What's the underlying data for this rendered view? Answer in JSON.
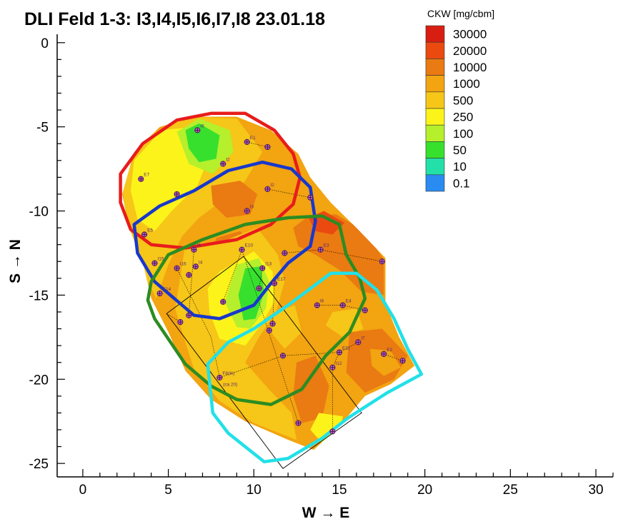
{
  "chart_data": {
    "type": "heatmap",
    "title": "DLI Feld 1-3: I3,I4,I5,I6,I7,I8 23.01.18",
    "xlabel": "W → E",
    "ylabel": "S → N",
    "xlim": [
      -1.5,
      31
    ],
    "ylim": [
      -25.8,
      0.5
    ],
    "xticks": [
      0,
      5,
      10,
      15,
      20,
      25,
      30
    ],
    "yticks": [
      0,
      -5,
      -10,
      -15,
      -20,
      -25
    ],
    "legend": {
      "title": "CKW [mg/cbm]",
      "placement": "top-right",
      "levels": [
        {
          "label": "30000",
          "color": "#d81e12"
        },
        {
          "label": "20000",
          "color": "#ea4a10"
        },
        {
          "label": "10000",
          "color": "#ea7a12"
        },
        {
          "label": "1000",
          "color": "#f2a411"
        },
        {
          "label": "500",
          "color": "#f6c618"
        },
        {
          "label": "250",
          "color": "#fcf31a"
        },
        {
          "label": "100",
          "color": "#b6ef2c"
        },
        {
          "label": "50",
          "color": "#38e02e"
        },
        {
          "label": "10",
          "color": "#22e0a8"
        },
        {
          "label": "0.1",
          "color": "#2a8cf0"
        }
      ]
    },
    "zones": [
      {
        "color": "#e81c1c",
        "points": [
          [
            2.2,
            -7.8
          ],
          [
            3.5,
            -6
          ],
          [
            5.5,
            -4.6
          ],
          [
            7.5,
            -4.2
          ],
          [
            9.5,
            -4.2
          ],
          [
            11.2,
            -5.2
          ],
          [
            12.3,
            -6.6
          ],
          [
            12.7,
            -8
          ],
          [
            12.3,
            -9.6
          ],
          [
            11,
            -10.8
          ],
          [
            9,
            -11.7
          ],
          [
            6,
            -12.2
          ],
          [
            4,
            -12
          ],
          [
            2.8,
            -11.1
          ],
          [
            2.2,
            -9.5
          ]
        ]
      },
      {
        "color": "#1838cc",
        "points": [
          [
            3,
            -10.8
          ],
          [
            4.5,
            -9.7
          ],
          [
            6.5,
            -8.8
          ],
          [
            8.5,
            -7.6
          ],
          [
            10.5,
            -7.1
          ],
          [
            12.2,
            -7.5
          ],
          [
            13.3,
            -8.6
          ],
          [
            13.6,
            -10.6
          ],
          [
            13.3,
            -12.1
          ],
          [
            12,
            -13.1
          ],
          [
            11,
            -14.3
          ],
          [
            10,
            -15.6
          ],
          [
            8,
            -16.4
          ],
          [
            6.5,
            -16.2
          ],
          [
            4.2,
            -14.2
          ],
          [
            3.2,
            -12.5
          ]
        ]
      },
      {
        "color": "#2c8c22",
        "points": [
          [
            4,
            -14.2
          ],
          [
            5,
            -12.6
          ],
          [
            7,
            -11.7
          ],
          [
            9.5,
            -10.8
          ],
          [
            12,
            -10.4
          ],
          [
            14,
            -10.3
          ],
          [
            15,
            -10.8
          ],
          [
            15.4,
            -12.6
          ],
          [
            16.2,
            -14
          ],
          [
            16.5,
            -15.2
          ],
          [
            15.6,
            -17.2
          ],
          [
            14.2,
            -18.6
          ],
          [
            12.8,
            -20.6
          ],
          [
            11,
            -21.5
          ],
          [
            9,
            -21.2
          ],
          [
            7.5,
            -20.4
          ],
          [
            6,
            -19.1
          ],
          [
            4.2,
            -16.4
          ],
          [
            3.8,
            -15.3
          ]
        ]
      },
      {
        "color": "#22e0e8",
        "points": [
          [
            7.3,
            -19.1
          ],
          [
            8.5,
            -17.8
          ],
          [
            10,
            -17
          ],
          [
            12,
            -15.6
          ],
          [
            14.5,
            -13.7
          ],
          [
            16,
            -13.7
          ],
          [
            17.2,
            -14.7
          ],
          [
            18.2,
            -16.4
          ],
          [
            19,
            -18.2
          ],
          [
            19.8,
            -19.7
          ],
          [
            17.8,
            -20.8
          ],
          [
            15.5,
            -22.3
          ],
          [
            14,
            -23.5
          ],
          [
            12,
            -24.7
          ],
          [
            10.6,
            -24.9
          ],
          [
            8.5,
            -23.2
          ],
          [
            7.6,
            -22
          ]
        ]
      }
    ],
    "polygon_color": "#000000",
    "sampling_points": [
      {
        "label": "I6",
        "x": 6.7,
        "y": -5.2
      },
      {
        "label": "E1",
        "x": 9.6,
        "y": -5.9
      },
      {
        "label": "",
        "x": 10.8,
        "y": -6.2
      },
      {
        "label": "I2",
        "x": 8.2,
        "y": -7.2
      },
      {
        "label": "E7",
        "x": 3.4,
        "y": -8.1
      },
      {
        "label": "I2",
        "x": 10.8,
        "y": -8.7
      },
      {
        "label": "",
        "x": 13.3,
        "y": -9.2
      },
      {
        "label": "",
        "x": 5.5,
        "y": -9.0
      },
      {
        "label": "I3",
        "x": 9.6,
        "y": -10.0
      },
      {
        "label": "E5",
        "x": 3.6,
        "y": -11.4
      },
      {
        "label": "I8",
        "x": 6.5,
        "y": -12.3
      },
      {
        "label": "E10",
        "x": 9.3,
        "y": -12.3
      },
      {
        "label": "E3",
        "x": 13.9,
        "y": -12.3
      },
      {
        "label": "",
        "x": 11.8,
        "y": -12.5
      },
      {
        "label": "",
        "x": 17.5,
        "y": -13.0
      },
      {
        "label": "I15",
        "x": 4.2,
        "y": -13.1
      },
      {
        "label": "I16",
        "x": 5.5,
        "y": -13.4
      },
      {
        "label": "I4",
        "x": 6.6,
        "y": -13.3
      },
      {
        "label": "",
        "x": 6.2,
        "y": -13.8
      },
      {
        "label": "I13",
        "x": 10.5,
        "y": -13.4
      },
      {
        "label": "E14",
        "x": 4.5,
        "y": -14.9
      },
      {
        "label": "E17",
        "x": 11.2,
        "y": -14.3
      },
      {
        "label": "",
        "x": 10.3,
        "y": -14.6
      },
      {
        "label": "",
        "x": 8.2,
        "y": -15.4
      },
      {
        "label": "I6",
        "x": 13.7,
        "y": -15.6
      },
      {
        "label": "E4",
        "x": 15.2,
        "y": -15.6
      },
      {
        "label": "",
        "x": 16.5,
        "y": -15.9
      },
      {
        "label": "",
        "x": 6.2,
        "y": -16.2
      },
      {
        "label": "",
        "x": 5.7,
        "y": -16.6
      },
      {
        "label": "",
        "x": 11.1,
        "y": -16.7
      },
      {
        "label": "",
        "x": 10.9,
        "y": -17.1
      },
      {
        "label": "I7",
        "x": 16.1,
        "y": -17.8
      },
      {
        "label": "E11",
        "x": 15.0,
        "y": -18.4
      },
      {
        "label": "E2",
        "x": 17.6,
        "y": -18.5
      },
      {
        "label": "",
        "x": 11.7,
        "y": -18.6
      },
      {
        "label": "",
        "x": 18.7,
        "y": -18.9
      },
      {
        "label": "I12",
        "x": 14.6,
        "y": -19.3
      },
      {
        "label": "F8(Ik)",
        "x": 8.0,
        "y": -19.9
      },
      {
        "label": "",
        "x": 12.6,
        "y": -22.6
      },
      {
        "label": "",
        "x": 14.6,
        "y": -23.1
      }
    ],
    "extra_labels": [
      {
        "text": "(ca 20)",
        "x": 8.2,
        "y": -20.4
      }
    ]
  }
}
